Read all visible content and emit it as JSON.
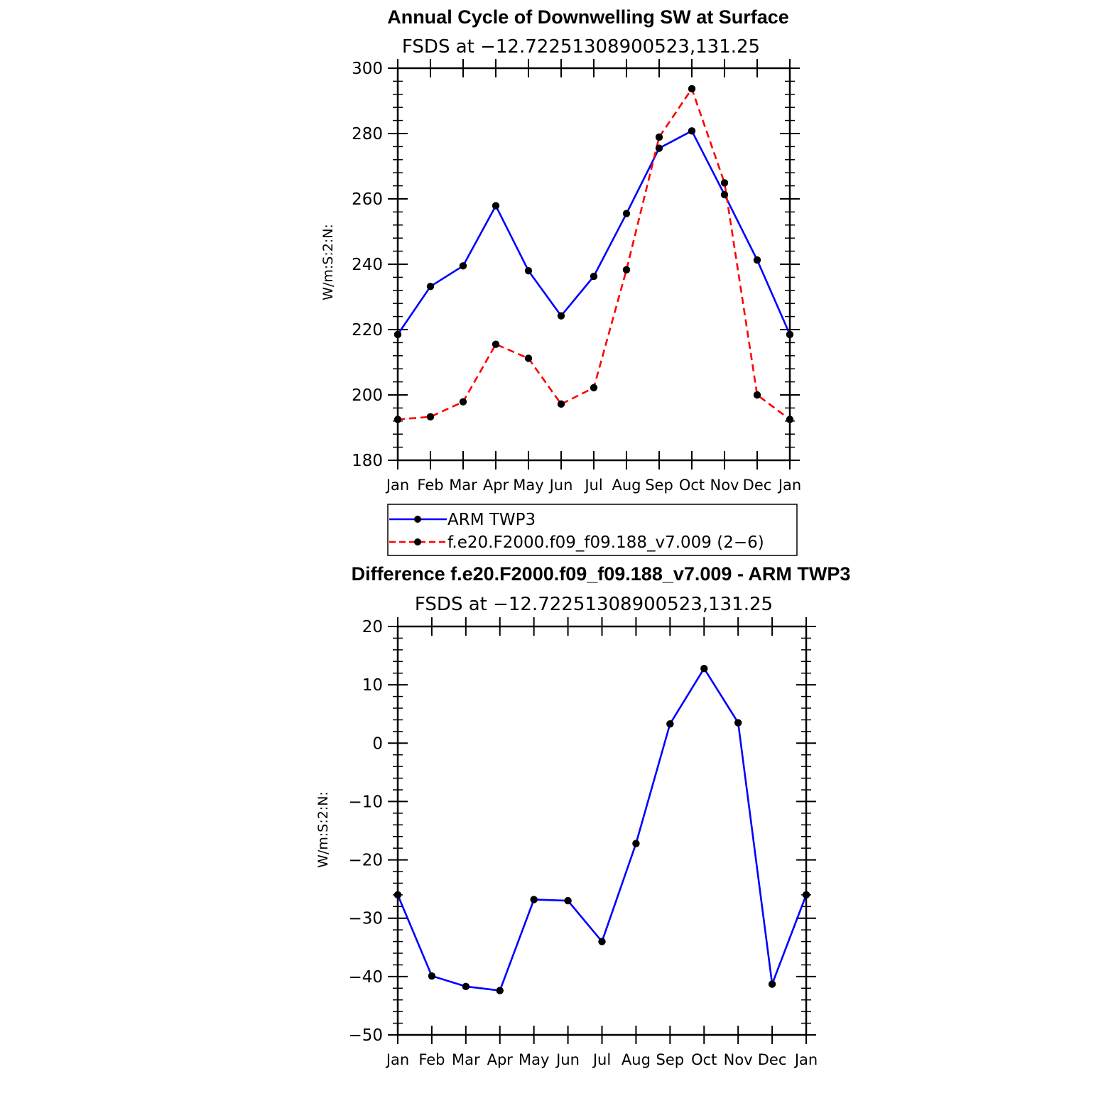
{
  "chart_data": [
    {
      "type": "line",
      "title": "Annual Cycle of Downwelling SW at Surface",
      "subtitle": "FSDS at −12.72251308900523,131.25",
      "ylabel": "W/m:S:2:N:",
      "ylim": [
        180,
        300
      ],
      "yticks": [
        "180",
        "200",
        "220",
        "240",
        "260",
        "280",
        "300"
      ],
      "categories": [
        "Jan",
        "Feb",
        "Mar",
        "Apr",
        "May",
        "Jun",
        "Jul",
        "Aug",
        "Sep",
        "Oct",
        "Nov",
        "Dec",
        "Jan"
      ],
      "series": [
        {
          "name": "ARM TWP3",
          "color": "#0000ff",
          "dash": "solid",
          "values": [
            218.5,
            233.2,
            239.5,
            257.9,
            238.0,
            224.2,
            236.3,
            255.5,
            275.5,
            280.8,
            261.3,
            241.3,
            218.5
          ]
        },
        {
          "name": "f.e20.F2000.f09_f09.188_v7.009 (2−6)",
          "color": "#ff0000",
          "dash": "dashed",
          "values": [
            192.5,
            193.3,
            197.9,
            215.5,
            211.2,
            197.2,
            202.2,
            238.3,
            278.9,
            293.7,
            264.9,
            200.0,
            192.5
          ]
        }
      ],
      "grid": false,
      "legend_position": "below"
    },
    {
      "type": "line",
      "title": "Difference f.e20.F2000.f09_f09.188_v7.009 - ARM TWP3",
      "subtitle": "FSDS at −12.72251308900523,131.25",
      "ylabel": "W/m:S:2:N:",
      "ylim": [
        -50,
        20
      ],
      "yticks": [
        "−50",
        "−40",
        "−30",
        "−20",
        "−10",
        "0",
        "10",
        "20"
      ],
      "categories": [
        "Jan",
        "Feb",
        "Mar",
        "Apr",
        "May",
        "Jun",
        "Jul",
        "Aug",
        "Sep",
        "Oct",
        "Nov",
        "Dec",
        "Jan"
      ],
      "series": [
        {
          "color": "#0000ff",
          "dash": "solid",
          "values": [
            -26.0,
            -39.9,
            -41.7,
            -42.4,
            -26.8,
            -27.0,
            -34.0,
            -17.2,
            3.3,
            12.8,
            3.5,
            -41.3,
            -26.0
          ]
        }
      ],
      "grid": false
    }
  ]
}
